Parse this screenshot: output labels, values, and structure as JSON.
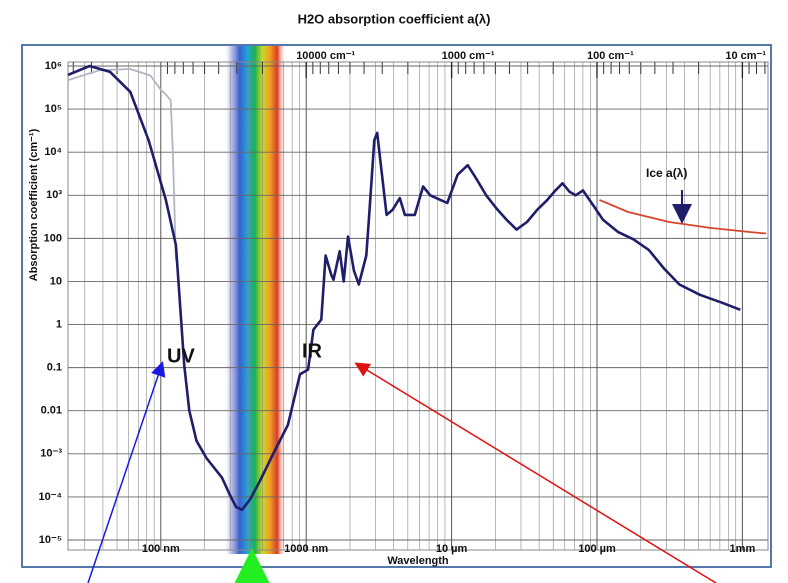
{
  "chart_data": {
    "type": "line",
    "title": "H2O absorption coefficient a(λ)",
    "xlabel": "Wavelength",
    "ylabel": "Absorption coefficient (cm⁻¹)",
    "log_x": true,
    "log_y": true,
    "grid": true,
    "xlim": [
      23,
      1500000
    ],
    "xticks": [
      {
        "value": 100,
        "label": "100 nm"
      },
      {
        "value": 1000,
        "label": "1000 nm"
      },
      {
        "value": 10000,
        "label": "10 µm"
      },
      {
        "value": 100000,
        "label": "100 µm"
      },
      {
        "value": 1000000,
        "label": "1mm"
      }
    ],
    "x2lim": [
      434783,
      6.667
    ],
    "x2ticks": [
      {
        "value": 10000,
        "label": "10000 cm⁻¹"
      },
      {
        "value": 1000,
        "label": "1000 cm⁻¹"
      },
      {
        "value": 100,
        "label": "100 cm⁻¹"
      },
      {
        "value": 10,
        "label": "10 cm⁻¹"
      }
    ],
    "ylim": [
      1e-05,
      1000000
    ],
    "yticks": [
      {
        "value": 1000000,
        "label": "10⁶"
      },
      {
        "value": 100000,
        "label": "10⁵"
      },
      {
        "value": 10000,
        "label": "10⁴"
      },
      {
        "value": 1000,
        "label": "10³"
      },
      100,
      10,
      1,
      0.1,
      0.01,
      {
        "value": 0.001,
        "label": "10⁻³"
      },
      {
        "value": 0.0001,
        "label": "10⁻⁴"
      },
      {
        "value": 1e-05,
        "label": "10⁻⁵"
      }
    ],
    "series": [
      {
        "color": "#b4b4c4",
        "x": [
          23,
          38,
          62,
          85,
          100,
          108,
          117,
          121,
          127
        ],
        "values": [
          470000,
          800000,
          850000,
          600000,
          280000,
          220000,
          160000,
          11000,
          31
        ]
      },
      {
        "color": "#1e1e6a",
        "x": [
          23,
          32.4,
          44.8,
          61.7,
          82.4,
          108,
          127,
          138,
          145,
          157,
          176,
          206,
          263,
          299,
          329,
          362,
          412,
          485,
          588,
          748,
          906,
          1030,
          1120,
          1270,
          1360,
          1490,
          1540,
          1700,
          1810,
          1940,
          2130,
          2300,
          2590,
          2710,
          2940,
          3080,
          3290,
          3570,
          3930,
          4400,
          4770,
          5580,
          6370,
          7130,
          8380,
          9340,
          11000,
          12900,
          14700,
          17300,
          20300,
          23900,
          28000,
          33000,
          38800,
          45500,
          51800,
          57900,
          64900,
          71400,
          80000,
          94000,
          110000,
          140000,
          178000,
          227000,
          289000,
          369000,
          510000,
          727000,
          969000
        ],
        "values": [
          620000,
          1000000,
          730000,
          250000,
          19000,
          800,
          70,
          1.3,
          0.11,
          0.01,
          0.002,
          0.0008,
          0.00028,
          0.00011,
          5.9e-05,
          5e-05,
          8.9e-05,
          0.00025,
          0.00095,
          0.0047,
          0.07,
          0.09,
          0.76,
          1.3,
          40,
          14,
          11,
          50,
          10,
          110,
          18,
          8.5,
          40,
          350,
          19000,
          28000,
          3900,
          350,
          460,
          860,
          350,
          350,
          1600,
          1000,
          780,
          660,
          3000,
          5000,
          2500,
          1000,
          500,
          270,
          160,
          240,
          460,
          780,
          1300,
          1900,
          1200,
          1000,
          1300,
          590,
          270,
          140,
          95,
          54,
          20,
          8.5,
          4.9,
          3.2,
          2.2
        ]
      },
      {
        "color": "#d9442e",
        "x": [
          104000,
          164000,
          314000,
          600000,
          1140000,
          1450000
        ],
        "values": [
          780,
          410,
          240,
          175,
          140,
          130
        ]
      }
    ],
    "annotations": [
      {
        "text": "UV"
      },
      {
        "text": "IR"
      },
      {
        "text": "Ice a(λ)"
      }
    ]
  }
}
